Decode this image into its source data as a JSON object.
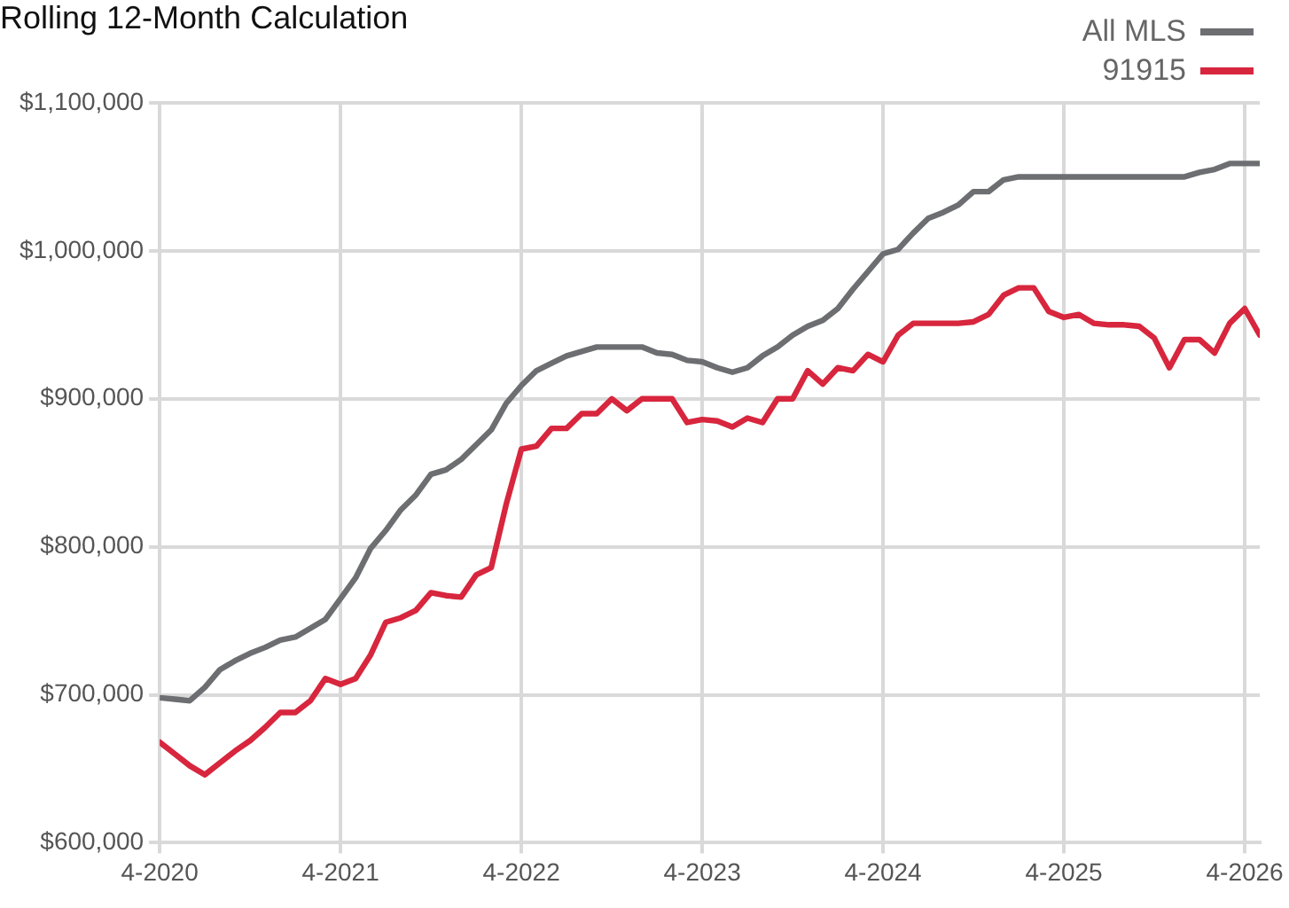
{
  "chart_data": {
    "type": "line",
    "title": "Rolling 12-Month Calculation",
    "x": [
      "2020-04",
      "2020-05",
      "2020-06",
      "2020-07",
      "2020-08",
      "2020-09",
      "2020-10",
      "2020-11",
      "2020-12",
      "2021-01",
      "2021-02",
      "2021-03",
      "2021-04",
      "2021-05",
      "2021-06",
      "2021-07",
      "2021-08",
      "2021-09",
      "2021-10",
      "2021-11",
      "2021-12",
      "2022-01",
      "2022-02",
      "2022-03",
      "2022-04",
      "2022-05",
      "2022-06",
      "2022-07",
      "2022-08",
      "2022-09",
      "2022-10",
      "2022-11",
      "2022-12",
      "2023-01",
      "2023-02",
      "2023-03",
      "2023-04",
      "2023-05",
      "2023-06",
      "2023-07",
      "2023-08",
      "2023-09",
      "2023-10",
      "2023-11",
      "2023-12",
      "2024-01",
      "2024-02",
      "2024-03",
      "2024-04",
      "2024-05",
      "2024-06",
      "2024-07",
      "2024-08",
      "2024-09",
      "2024-10",
      "2024-11",
      "2024-12",
      "2025-01",
      "2025-02",
      "2025-03",
      "2025-04",
      "2025-05",
      "2025-06",
      "2025-07",
      "2025-08",
      "2025-09",
      "2025-10",
      "2025-11",
      "2025-12",
      "2026-01",
      "2026-02",
      "2026-03",
      "2026-04",
      "2026-05"
    ],
    "series": [
      {
        "name": "All MLS",
        "color": "#6d6e71",
        "values": [
          698000,
          697000,
          696000,
          705000,
          717000,
          723000,
          728000,
          732000,
          737000,
          739000,
          745000,
          751000,
          765000,
          779000,
          799000,
          811000,
          825000,
          835000,
          849000,
          852000,
          859000,
          869000,
          879000,
          897000,
          909000,
          919000,
          924000,
          929000,
          932000,
          935000,
          935000,
          935000,
          935000,
          931000,
          930000,
          926000,
          925000,
          921000,
          918000,
          921000,
          929000,
          935000,
          943000,
          949000,
          953000,
          961000,
          974000,
          986000,
          998000,
          1001000,
          1012000,
          1022000,
          1026000,
          1031000,
          1040000,
          1040000,
          1048000,
          1050000,
          1050000,
          1050000,
          1050000,
          1050000,
          1050000,
          1050000,
          1050000,
          1050000,
          1050000,
          1050000,
          1050000,
          1053000,
          1055000,
          1059000,
          1059000,
          1059000
        ]
      },
      {
        "name": "91915",
        "color": "#d7263d",
        "values": [
          668000,
          660000,
          652000,
          646000,
          654000,
          662000,
          669000,
          678000,
          688000,
          688000,
          696000,
          711000,
          707000,
          711000,
          727000,
          749000,
          752000,
          757000,
          769000,
          767000,
          766000,
          781000,
          786000,
          829000,
          866000,
          868000,
          880000,
          880000,
          890000,
          890000,
          900000,
          892000,
          900000,
          900000,
          900000,
          884000,
          886000,
          885000,
          881000,
          887000,
          884000,
          900000,
          900000,
          919000,
          910000,
          921000,
          919000,
          930000,
          925000,
          943000,
          951000,
          951000,
          951000,
          951000,
          952000,
          957000,
          970000,
          975000,
          975000,
          959000,
          955000,
          957000,
          951000,
          950000,
          950000,
          949000,
          941000,
          921000,
          940000,
          940000,
          931000,
          951000,
          961000,
          943000
        ]
      }
    ],
    "xlim": [
      "2020-04",
      "2026-05"
    ],
    "xticks": [
      {
        "value": "2020-04",
        "label": "4-2020"
      },
      {
        "value": "2021-04",
        "label": "4-2021"
      },
      {
        "value": "2022-04",
        "label": "4-2022"
      },
      {
        "value": "2023-04",
        "label": "4-2023"
      },
      {
        "value": "2024-04",
        "label": "4-2024"
      },
      {
        "value": "2025-04",
        "label": "4-2025"
      },
      {
        "value": "2026-04",
        "label": "4-2026"
      }
    ],
    "ylim": [
      600000,
      1100000
    ],
    "yticks": [
      {
        "value": 600000,
        "label": "$600,000"
      },
      {
        "value": 700000,
        "label": "$700,000"
      },
      {
        "value": 800000,
        "label": "$800,000"
      },
      {
        "value": 900000,
        "label": "$900,000"
      },
      {
        "value": 1000000,
        "label": "$1,000,000"
      },
      {
        "value": 1100000,
        "label": "$1,100,000"
      }
    ],
    "grid": true,
    "legend": "top right",
    "marker": "none",
    "line_style": "solid"
  }
}
